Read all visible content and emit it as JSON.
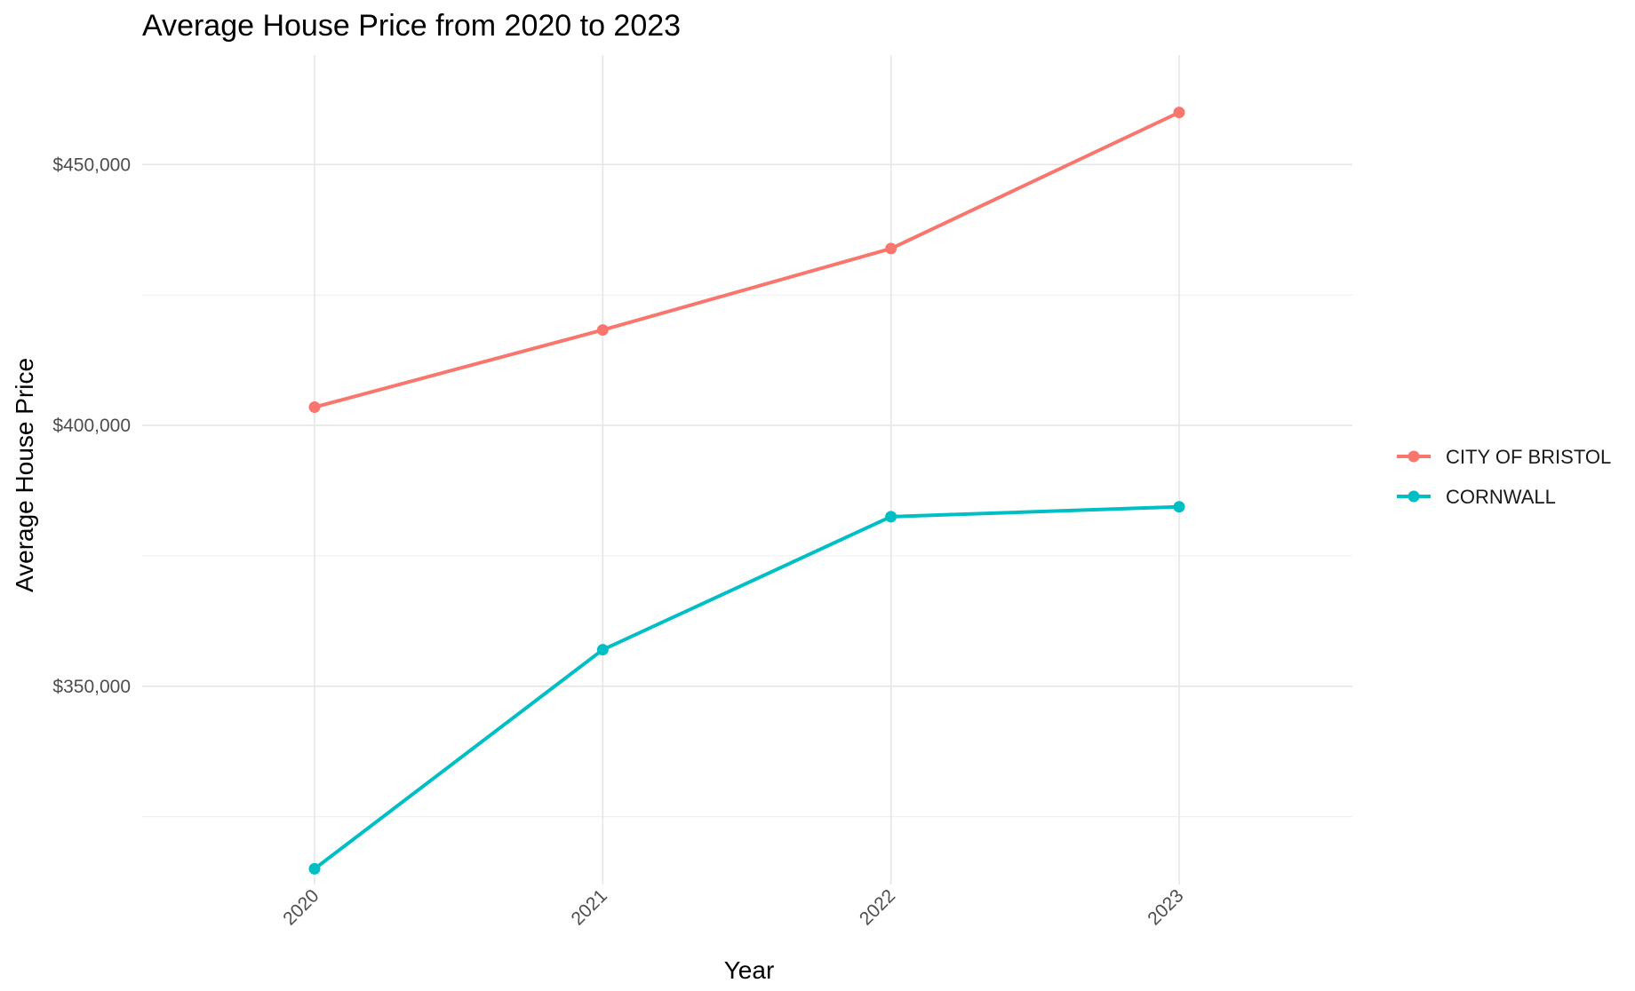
{
  "chart_data": {
    "type": "line",
    "title": "Average House Price from 2020 to 2023",
    "xlabel": "Year",
    "ylabel": "Average House Price",
    "categories": [
      "2020",
      "2021",
      "2022",
      "2023"
    ],
    "ylim": [
      312000,
      471000
    ],
    "y_ticks": [
      350000,
      400000,
      450000
    ],
    "y_tick_labels": [
      "$350,000",
      "$400,000",
      "$450,000"
    ],
    "y_minor_ticks": [
      325000,
      375000,
      425000
    ],
    "grid": true,
    "legend_position": "right",
    "series": [
      {
        "name": "CITY OF BRISTOL",
        "color": "#F8766D",
        "values": [
          403500,
          418300,
          433900,
          460000
        ]
      },
      {
        "name": "CORNWALL",
        "color": "#00BFC4",
        "values": [
          315000,
          357000,
          382500,
          384400
        ]
      }
    ]
  }
}
